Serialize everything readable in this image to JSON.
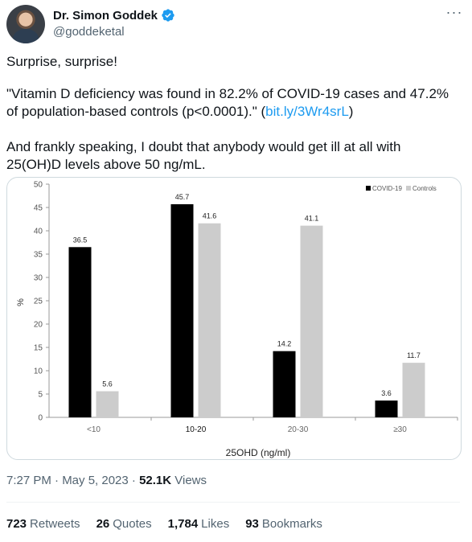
{
  "author": {
    "display_name": "Dr. Simon Goddek",
    "handle": "@goddeketal",
    "verified_icon": "verified-badge-icon",
    "avatar_icon": "avatar"
  },
  "tweet": {
    "line1": "Surprise, surprise!",
    "quote": "\"Vitamin D deficiency was found in 82.2% of COVID-19 cases and 47.2% of population-based controls (p<0.0001).\" ",
    "link_text": "bit.ly/3Wr4srL",
    "quote_close": ")",
    "quote_open_paren": "(",
    "line3": "And frankly speaking, I doubt that anybody would get ill at all with 25(OH)D levels above 50 ng/mL."
  },
  "meta": {
    "time": "7:27 PM · May 5, 2023 · ",
    "views_count": "52.1K",
    "views_label": " Views"
  },
  "stats": [
    {
      "num": "723",
      "label": "Retweets"
    },
    {
      "num": "26",
      "label": "Quotes"
    },
    {
      "num": "1,784",
      "label": "Likes"
    },
    {
      "num": "93",
      "label": "Bookmarks"
    }
  ],
  "colors": {
    "covid": "#000000",
    "controls": "#cccccc",
    "link": "#1d9bf0"
  },
  "chart_data": {
    "type": "bar",
    "categories": [
      "<10",
      "10-20",
      "20-30",
      "≥30"
    ],
    "series": [
      {
        "name": "COVID-19",
        "values": [
          36.5,
          45.7,
          14.2,
          3.6
        ]
      },
      {
        "name": "Controls",
        "values": [
          5.6,
          41.6,
          41.1,
          11.7
        ]
      }
    ],
    "value_labels": [
      [
        "36.5",
        "45.7",
        "14.2",
        "3.6"
      ],
      [
        "5.6",
        "41.6",
        "41.1",
        "11.7"
      ]
    ],
    "xlabel": "25OHD (ng/ml)",
    "ylabel": "%",
    "ylim": [
      0,
      50
    ],
    "yticks": [
      0,
      5,
      10,
      15,
      20,
      25,
      30,
      35,
      40,
      45,
      50
    ],
    "ytick_labels": [
      "0",
      "5",
      "10",
      "15",
      "20",
      "25",
      "30",
      "35",
      "40",
      "45",
      "50"
    ],
    "grid": false,
    "legend": "top-right"
  }
}
